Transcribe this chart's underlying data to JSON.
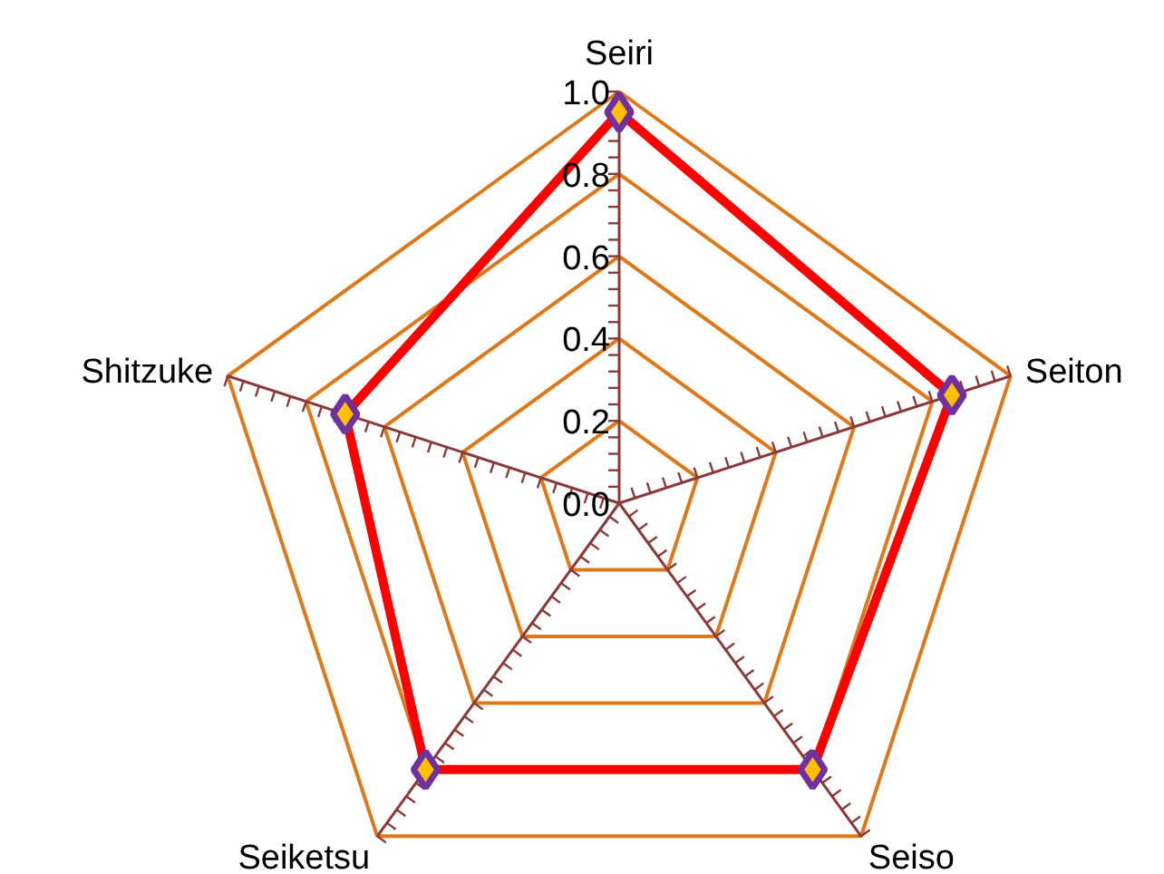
{
  "chart_data": {
    "type": "radar",
    "categories": [
      "Seiri",
      "Seiton",
      "Seiso",
      "Seiketsu",
      "Shitzuke"
    ],
    "series": [
      {
        "color": "#ff0000",
        "values": [
          0.95,
          0.85,
          0.8,
          0.8,
          0.7
        ]
      }
    ],
    "ylim": [
      0,
      1
    ],
    "yticks": [
      {
        "value": 0,
        "label": "0.0"
      },
      0.2,
      0.4,
      0.6,
      0.8,
      {
        "value": 1,
        "label": "1.0"
      }
    ],
    "grid": true,
    "marker": "diamond",
    "line_style": "solid"
  }
}
